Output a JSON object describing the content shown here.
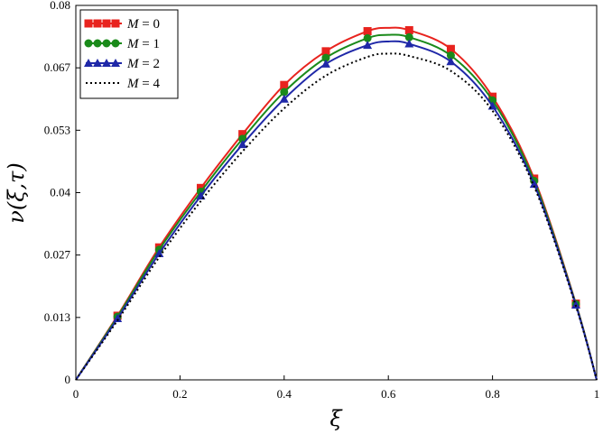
{
  "chart_data": {
    "type": "line",
    "xlabel": "ξ",
    "ylabel": "ν(ξ,τ)",
    "xlim": [
      0,
      1
    ],
    "ylim": [
      0,
      0.08
    ],
    "xticks": [
      "0",
      "0.2",
      "0.4",
      "0.6",
      "0.8",
      "1"
    ],
    "yticks": [
      "0",
      "0.013",
      "0.027",
      "0.04",
      "0.053",
      "0.067",
      "0.08"
    ],
    "grid": false,
    "legend_position": "top-left",
    "series": [
      {
        "name": "M = 0",
        "var": "M",
        "value": "0",
        "color": "#e8231e",
        "marker": "square",
        "dash": "solid",
        "x": [
          0,
          0.08,
          0.16,
          0.24,
          0.32,
          0.4,
          0.48,
          0.56,
          0.6,
          0.64,
          0.72,
          0.8,
          0.88,
          0.96,
          1.0
        ],
        "y": [
          0,
          0.0137,
          0.0283,
          0.041,
          0.0525,
          0.063,
          0.0702,
          0.0745,
          0.0752,
          0.0747,
          0.0707,
          0.0605,
          0.043,
          0.0163,
          0
        ],
        "marker_x": [
          0.08,
          0.16,
          0.24,
          0.32,
          0.4,
          0.48,
          0.56,
          0.64,
          0.72,
          0.8,
          0.88,
          0.96
        ]
      },
      {
        "name": "M = 1",
        "var": "M",
        "value": "1",
        "color": "#1a8a1a",
        "marker": "circle",
        "dash": "solid",
        "x": [
          0,
          0.08,
          0.16,
          0.24,
          0.32,
          0.4,
          0.48,
          0.56,
          0.6,
          0.64,
          0.72,
          0.8,
          0.88,
          0.96,
          1.0
        ],
        "y": [
          0,
          0.0135,
          0.0278,
          0.0402,
          0.0515,
          0.0615,
          0.0688,
          0.073,
          0.0737,
          0.0732,
          0.0693,
          0.0597,
          0.0425,
          0.0162,
          0
        ],
        "marker_x": [
          0.08,
          0.16,
          0.24,
          0.32,
          0.4,
          0.48,
          0.56,
          0.64,
          0.72,
          0.8,
          0.88,
          0.96
        ]
      },
      {
        "name": "M = 2",
        "var": "M",
        "value": "2",
        "color": "#1f28a8",
        "marker": "triangle",
        "dash": "solid",
        "x": [
          0,
          0.08,
          0.16,
          0.24,
          0.32,
          0.4,
          0.48,
          0.56,
          0.6,
          0.64,
          0.72,
          0.8,
          0.88,
          0.96,
          1.0
        ],
        "y": [
          0,
          0.0131,
          0.027,
          0.0393,
          0.0503,
          0.06,
          0.0675,
          0.0715,
          0.0723,
          0.0718,
          0.068,
          0.0585,
          0.0418,
          0.016,
          0
        ],
        "marker_x": [
          0.08,
          0.16,
          0.24,
          0.32,
          0.4,
          0.48,
          0.56,
          0.64,
          0.72,
          0.8,
          0.88,
          0.96
        ]
      },
      {
        "name": "M = 4",
        "var": "M",
        "value": "4",
        "color": "#000000",
        "marker": "none",
        "dash": "dotted",
        "x": [
          0,
          0.08,
          0.16,
          0.24,
          0.32,
          0.4,
          0.48,
          0.56,
          0.6,
          0.64,
          0.72,
          0.8,
          0.88,
          0.96,
          1.0
        ],
        "y": [
          0,
          0.0127,
          0.0262,
          0.0382,
          0.0488,
          0.058,
          0.065,
          0.069,
          0.0697,
          0.0692,
          0.066,
          0.0575,
          0.0413,
          0.0158,
          0
        ],
        "marker_x": []
      }
    ]
  }
}
